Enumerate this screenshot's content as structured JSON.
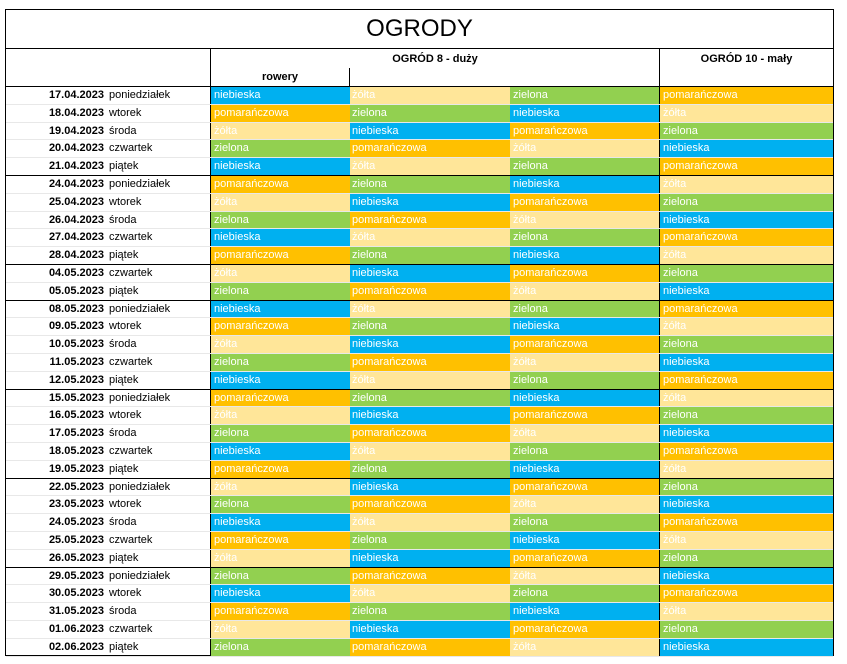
{
  "title": "OGRODY",
  "headers": {
    "ogrod8": "OGRÓD 8  - duży",
    "ogrod10": "OGRÓD 10 - mały",
    "rowery": "rowery"
  },
  "colors": {
    "niebieska": "#00b0f0",
    "żółta": "#ffe699",
    "zielona": "#92d050",
    "pomarańczowa": "#ffc000"
  },
  "rows": [
    {
      "date": "17.04.2023",
      "day": "poniedziałek",
      "c1": "niebieska",
      "c2": "żółta",
      "c3": "zielona",
      "c4": "pomarańczowa"
    },
    {
      "date": "18.04.2023",
      "day": "wtorek",
      "c1": "pomarańczowa",
      "c2": "zielona",
      "c3": "niebieska",
      "c4": "żółta"
    },
    {
      "date": "19.04.2023",
      "day": "środa",
      "c1": "żółta",
      "c2": "niebieska",
      "c3": "pomarańczowa",
      "c4": "zielona"
    },
    {
      "date": "20.04.2023",
      "day": "czwartek",
      "c1": "zielona",
      "c2": "pomarańczowa",
      "c3": "żółta",
      "c4": "niebieska"
    },
    {
      "date": "21.04.2023",
      "day": "piątek",
      "c1": "niebieska",
      "c2": "żółta",
      "c3": "zielona",
      "c4": "pomarańczowa",
      "end": true
    },
    {
      "date": "24.04.2023",
      "day": "poniedziałek",
      "c1": "pomarańczowa",
      "c2": "zielona",
      "c3": "niebieska",
      "c4": "żółta"
    },
    {
      "date": "25.04.2023",
      "day": "wtorek",
      "c1": "żółta",
      "c2": "niebieska",
      "c3": "pomarańczowa",
      "c4": "zielona"
    },
    {
      "date": "26.04.2023",
      "day": "środa",
      "c1": "zielona",
      "c2": "pomarańczowa",
      "c3": "żółta",
      "c4": "niebieska"
    },
    {
      "date": "27.04.2023",
      "day": "czwartek",
      "c1": "niebieska",
      "c2": "żółta",
      "c3": "zielona",
      "c4": "pomarańczowa"
    },
    {
      "date": "28.04.2023",
      "day": "piątek",
      "c1": "pomarańczowa",
      "c2": "zielona",
      "c3": "niebieska",
      "c4": "żółta",
      "end": true
    },
    {
      "date": "04.05.2023",
      "day": "czwartek",
      "c1": "żółta",
      "c2": "niebieska",
      "c3": "pomarańczowa",
      "c4": "zielona"
    },
    {
      "date": "05.05.2023",
      "day": "piątek",
      "c1": "zielona",
      "c2": "pomarańczowa",
      "c3": "żółta",
      "c4": "niebieska",
      "end": true
    },
    {
      "date": "08.05.2023",
      "day": "poniedziałek",
      "c1": "niebieska",
      "c2": "żółta",
      "c3": "zielona",
      "c4": "pomarańczowa"
    },
    {
      "date": "09.05.2023",
      "day": "wtorek",
      "c1": "pomarańczowa",
      "c2": "zielona",
      "c3": "niebieska",
      "c4": "żółta"
    },
    {
      "date": "10.05.2023",
      "day": "środa",
      "c1": "żółta",
      "c2": "niebieska",
      "c3": "pomarańczowa",
      "c4": "zielona"
    },
    {
      "date": "11.05.2023",
      "day": "czwartek",
      "c1": "zielona",
      "c2": "pomarańczowa",
      "c3": "żółta",
      "c4": "niebieska"
    },
    {
      "date": "12.05.2023",
      "day": "piątek",
      "c1": "niebieska",
      "c2": "żółta",
      "c3": "zielona",
      "c4": "pomarańczowa",
      "end": true
    },
    {
      "date": "15.05.2023",
      "day": "poniedziałek",
      "c1": "pomarańczowa",
      "c2": "zielona",
      "c3": "niebieska",
      "c4": "żółta"
    },
    {
      "date": "16.05.2023",
      "day": "wtorek",
      "c1": "żółta",
      "c2": "niebieska",
      "c3": "pomarańczowa",
      "c4": "zielona"
    },
    {
      "date": "17.05.2023",
      "day": "środa",
      "c1": "zielona",
      "c2": "pomarańczowa",
      "c3": "żółta",
      "c4": "niebieska"
    },
    {
      "date": "18.05.2023",
      "day": "czwartek",
      "c1": "niebieska",
      "c2": "żółta",
      "c3": "zielona",
      "c4": "pomarańczowa"
    },
    {
      "date": "19.05.2023",
      "day": "piątek",
      "c1": "pomarańczowa",
      "c2": "zielona",
      "c3": "niebieska",
      "c4": "żółta",
      "end": true
    },
    {
      "date": "22.05.2023",
      "day": "poniedziałek",
      "c1": "żółta",
      "c2": "niebieska",
      "c3": "pomarańczowa",
      "c4": "zielona"
    },
    {
      "date": "23.05.2023",
      "day": "wtorek",
      "c1": "zielona",
      "c2": "pomarańczowa",
      "c3": "żółta",
      "c4": "niebieska"
    },
    {
      "date": "24.05.2023",
      "day": "środa",
      "c1": "niebieska",
      "c2": "żółta",
      "c3": "zielona",
      "c4": "pomarańczowa"
    },
    {
      "date": "25.05.2023",
      "day": "czwartek",
      "c1": "pomarańczowa",
      "c2": "zielona",
      "c3": "niebieska",
      "c4": "żółta"
    },
    {
      "date": "26.05.2023",
      "day": "piątek",
      "c1": "żółta",
      "c2": "niebieska",
      "c3": "pomarańczowa",
      "c4": "zielona",
      "end": true
    },
    {
      "date": "29.05.2023",
      "day": "poniedziałek",
      "c1": "zielona",
      "c2": "pomarańczowa",
      "c3": "żółta",
      "c4": "niebieska"
    },
    {
      "date": "30.05.2023",
      "day": "wtorek",
      "c1": "niebieska",
      "c2": "żółta",
      "c3": "zielona",
      "c4": "pomarańczowa"
    },
    {
      "date": "31.05.2023",
      "day": "środa",
      "c1": "pomarańczowa",
      "c2": "zielona",
      "c3": "niebieska",
      "c4": "żółta"
    },
    {
      "date": "01.06.2023",
      "day": "czwartek",
      "c1": "żółta",
      "c2": "niebieska",
      "c3": "pomarańczowa",
      "c4": "zielona"
    },
    {
      "date": "02.06.2023",
      "day": "piątek",
      "c1": "zielona",
      "c2": "pomarańczowa",
      "c3": "żółta",
      "c4": "niebieska"
    }
  ]
}
